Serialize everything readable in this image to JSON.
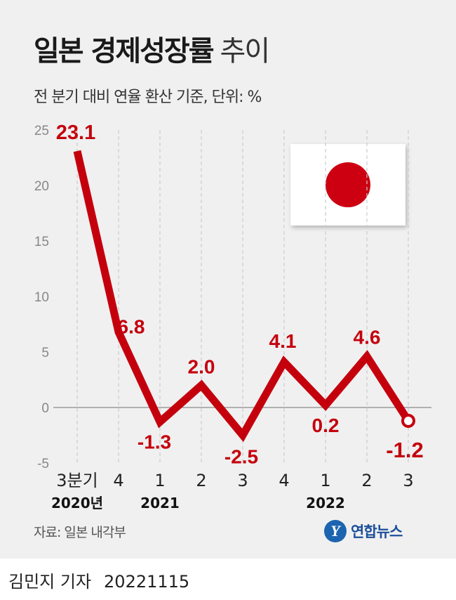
{
  "header": {
    "title_main": "일본 경제성장률",
    "title_suffix": "추이",
    "subtitle": "전 분기 대비 연율 환산 기준, 단위: %"
  },
  "chart_data": {
    "type": "line",
    "categories": [
      "3분기",
      "4",
      "1",
      "2",
      "3",
      "4",
      "1",
      "2",
      "3"
    ],
    "year_labels": [
      "2020년",
      "2021",
      "2022"
    ],
    "year_label_positions": [
      0,
      2,
      6
    ],
    "values": [
      23.1,
      6.8,
      -1.3,
      2.0,
      -2.5,
      4.1,
      0.2,
      4.6,
      -1.2
    ],
    "data_labels": [
      "23.1",
      "6.8",
      "-1.3",
      "2.0",
      "-2.5",
      "4.1",
      "0.2",
      "4.6",
      "-1.2"
    ],
    "ylim": [
      -5,
      25
    ],
    "yticks": [
      25,
      20,
      15,
      10,
      5,
      0,
      -5
    ],
    "line_color": "#c4000d",
    "label_color": "#c4000d"
  },
  "flag_icon": "japan-flag-icon",
  "footer": {
    "source": "자료: 일본 내각부",
    "agency": "연합뉴스",
    "agency_logo_letter": "Y",
    "reporter": "김민지 기자",
    "date": "20221115"
  }
}
